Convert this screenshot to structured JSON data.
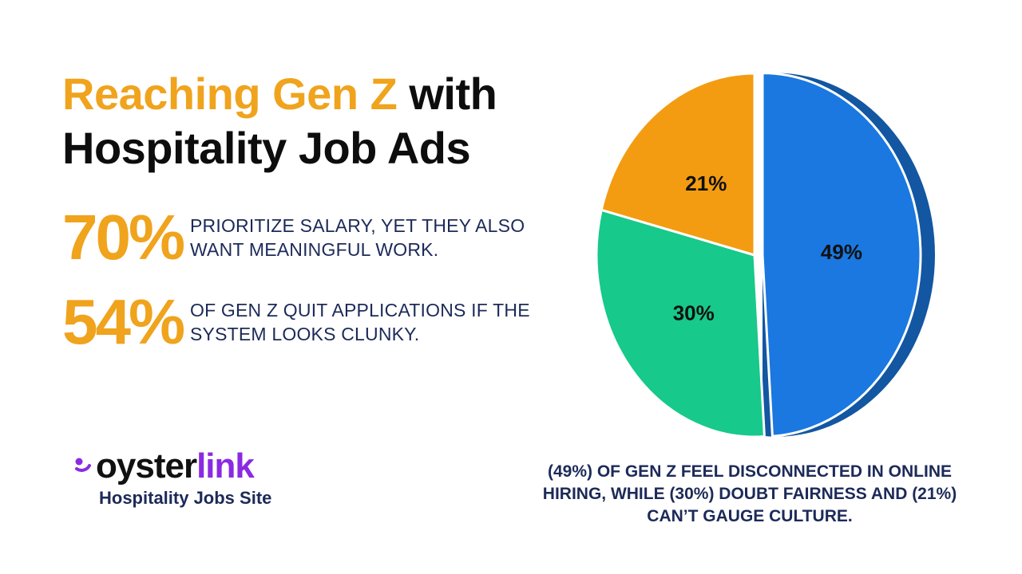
{
  "header": {
    "title_highlight": "Reaching Gen Z",
    "title_rest_line1": " with",
    "title_line2": "Hospitality Job Ads"
  },
  "stats": [
    {
      "value": "70%",
      "text": "PRIORITIZE SALARY, YET THEY ALSO WANT MEANINGFUL WORK."
    },
    {
      "value": "54%",
      "text": "OF GEN Z QUIT APPLICATIONS IF THE SYSTEM LOOKS CLUNKY."
    }
  ],
  "brand": {
    "name_part1": "oyster",
    "name_part2": "link",
    "tagline": "Hospitality Jobs Site",
    "icon": "oysterlink-logo-icon",
    "colors": {
      "primary": "#8a2be2",
      "text": "#111111"
    }
  },
  "chart_data": {
    "type": "pie",
    "title": "",
    "slices": [
      {
        "label": "49%",
        "value": 49,
        "color": "#1a78e0"
      },
      {
        "label": "30%",
        "value": 30,
        "color": "#17c98a"
      },
      {
        "label": "21%",
        "value": 21,
        "color": "#f39c12"
      }
    ],
    "caption": "(49%) OF GEN Z FEEL DISCONNECTED IN ONLINE HIRING, WHILE (30%) DOUBT FAIRNESS AND (21%) CAN’T GAUGE CULTURE."
  },
  "colors": {
    "accent": "#f0a31c",
    "navy": "#1c2a58",
    "heading": "#0d0d0d"
  }
}
